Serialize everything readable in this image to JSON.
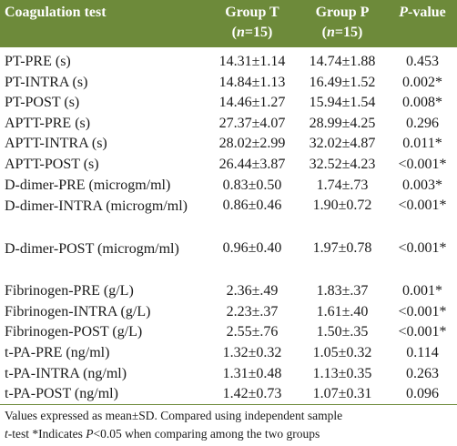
{
  "header": {
    "col_test": "Coagulation test",
    "col_group_t": "Group T",
    "col_group_t_n": "(n=15)",
    "col_group_p": "Group P",
    "col_group_p_n": "(n=15)",
    "col_pvalue": "P-value"
  },
  "rows": [
    {
      "test": "PT-PRE (s)",
      "group_t": "14.31±1.14",
      "group_p": "14.74±1.88",
      "p_value": "0.453"
    },
    {
      "test": "PT-INTRA (s)",
      "group_t": "14.84±1.13",
      "group_p": "16.49±1.52",
      "p_value": "0.002*"
    },
    {
      "test": "PT-POST (s)",
      "group_t": "14.46±1.27",
      "group_p": "15.94±1.54",
      "p_value": "0.008*"
    },
    {
      "test": "APTT-PRE (s)",
      "group_t": "27.37±4.07",
      "group_p": "28.99±4.25",
      "p_value": "0.296"
    },
    {
      "test": "APTT-INTRA (s)",
      "group_t": "28.02±2.99",
      "group_p": "32.02±4.87",
      "p_value": "0.011*"
    },
    {
      "test": "APTT-POST (s)",
      "group_t": "26.44±3.87",
      "group_p": "32.52±4.23",
      "p_value": "<0.001*"
    },
    {
      "test": "D-dimer-PRE (microgm/ml)",
      "group_t": "0.83±0.50",
      "group_p": "1.74±.73",
      "p_value": "0.003*"
    },
    {
      "test": "D-dimer-INTRA (microgm/ml)",
      "group_t": "0.86±0.46",
      "group_p": "1.90±0.72",
      "p_value": "<0.001*"
    },
    {
      "test": "D-dimer-POST (microgm/ml)",
      "group_t": "0.96±0.40",
      "group_p": "1.97±0.78",
      "p_value": "<0.001*"
    },
    {
      "test": "Fibrinogen-PRE (g/L)",
      "group_t": "2.36±.49",
      "group_p": "1.83±.37",
      "p_value": "0.001*"
    },
    {
      "test": "Fibrinogen-INTRA (g/L)",
      "group_t": "2.23±.37",
      "group_p": "1.61±.40",
      "p_value": "<0.001*"
    },
    {
      "test": "Fibrinogen-POST (g/L)",
      "group_t": "2.55±.76",
      "group_p": "1.50±.35",
      "p_value": "<0.001*"
    },
    {
      "test": "t-PA-PRE (ng/ml)",
      "group_t": "1.32±0.32",
      "group_p": "1.05±0.32",
      "p_value": "0.114"
    },
    {
      "test": "t-PA-INTRA (ng/ml)",
      "group_t": "1.31±0.48",
      "group_p": "1.13±0.35",
      "p_value": "0.263"
    },
    {
      "test": "t-PA-POST (ng/ml)",
      "group_t": "1.42±0.73",
      "group_p": "1.07±0.31",
      "p_value": "0.096"
    }
  ],
  "footnote": {
    "line1": "Values expressed as mean±SD. Compared using independent sample",
    "line2_a": "t",
    "line2_b": "-test *Indicates ",
    "line2_c": "P",
    "line2_d": "<0.05 when comparing among the two groups"
  },
  "colors": {
    "header_bg": "#6d8a3a",
    "header_text": "#ffffff"
  }
}
